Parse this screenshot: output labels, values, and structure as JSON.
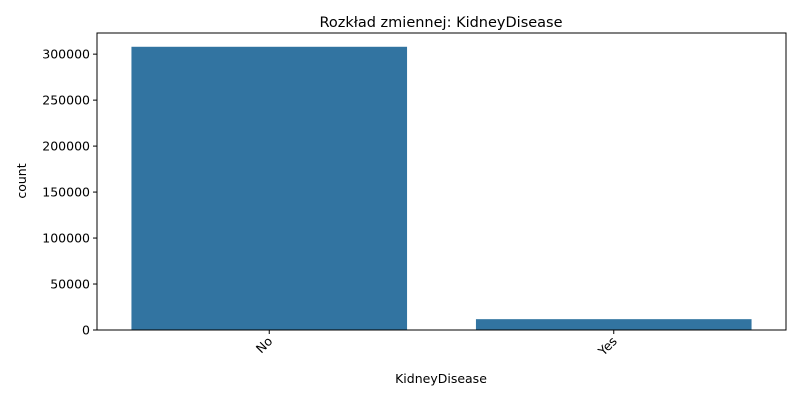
{
  "chart_data": {
    "type": "bar",
    "title": "Rozkład zmiennej: KidneyDisease",
    "xlabel": "KidneyDisease",
    "ylabel": "count",
    "categories": [
      "No",
      "Yes"
    ],
    "values": [
      308016,
      11779
    ],
    "ylim": [
      0,
      323000
    ],
    "yticks": [
      0,
      50000,
      100000,
      150000,
      200000,
      250000,
      300000
    ],
    "ytick_labels": [
      "0",
      "50000",
      "100000",
      "150000",
      "200000",
      "250000",
      "300000"
    ],
    "xtick_rotation": -45,
    "grid": false,
    "legend": "none",
    "bar_color": "#3274a1"
  }
}
